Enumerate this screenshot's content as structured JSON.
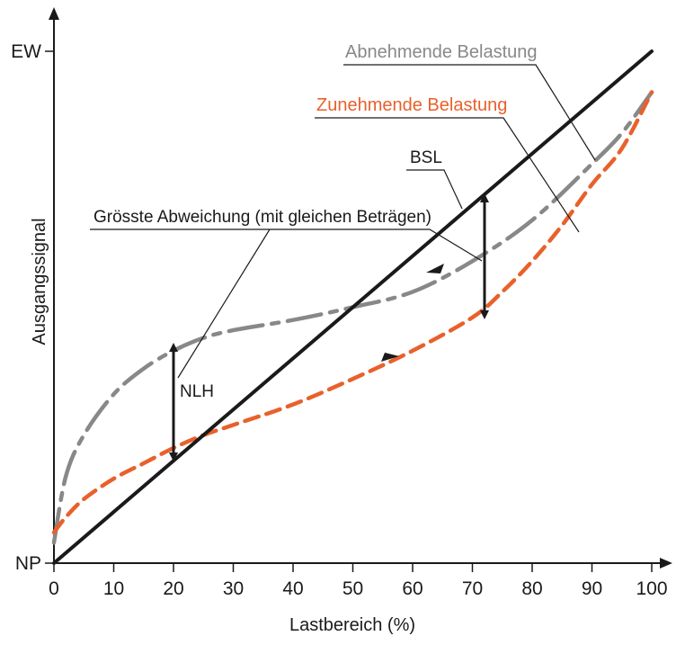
{
  "chart_data": {
    "type": "line",
    "xlabel": "Lastbereich (%)",
    "ylabel": "Ausgangssignal",
    "xlim": [
      0,
      100
    ],
    "ylim": [
      0,
      100
    ],
    "x_ticks": [
      0,
      10,
      20,
      30,
      40,
      50,
      60,
      70,
      80,
      90,
      100
    ],
    "y_ticks": [
      {
        "value": 0,
        "label": "NP"
      },
      {
        "value": 100,
        "label": "EW"
      }
    ],
    "grid": false,
    "colors": {
      "bsl": "#1a1a1a",
      "abnehmend": "#888888",
      "zunehmend": "#e8612c",
      "axis": "#1a1a1a",
      "annotation": "#1a1a1a"
    },
    "series": [
      {
        "name": "BSL",
        "style": "solid",
        "x": [
          0,
          100
        ],
        "y": [
          0,
          100
        ]
      },
      {
        "name": "Abnehmende Belastung",
        "style": "dashed",
        "x": [
          0,
          2,
          5,
          10,
          15,
          20,
          25,
          30,
          40,
          50,
          60,
          70,
          80,
          90,
          95,
          100
        ],
        "y": [
          4,
          17,
          25,
          33,
          38,
          41.5,
          44,
          45.5,
          47.5,
          50,
          53,
          59,
          67,
          78,
          84,
          92
        ]
      },
      {
        "name": "Zunehmende Belastung",
        "style": "dashed",
        "x": [
          0,
          2,
          5,
          10,
          15,
          20,
          25,
          30,
          40,
          50,
          60,
          70,
          75,
          80,
          85,
          90,
          95,
          100
        ],
        "y": [
          6,
          9,
          12.5,
          16.5,
          19.5,
          22.5,
          25,
          27,
          31,
          36,
          41.5,
          48,
          53,
          59,
          66,
          74,
          81,
          92
        ]
      }
    ],
    "annotations": {
      "bsl_label": "BSL",
      "nlh_label": "NLH",
      "max_dev_label": "Grösste Abweichung (mit gleichen Beträgen)",
      "abnehmend_label": "Abnehmende Belastung",
      "zunehmend_label": "Zunehmende Belastung"
    }
  }
}
